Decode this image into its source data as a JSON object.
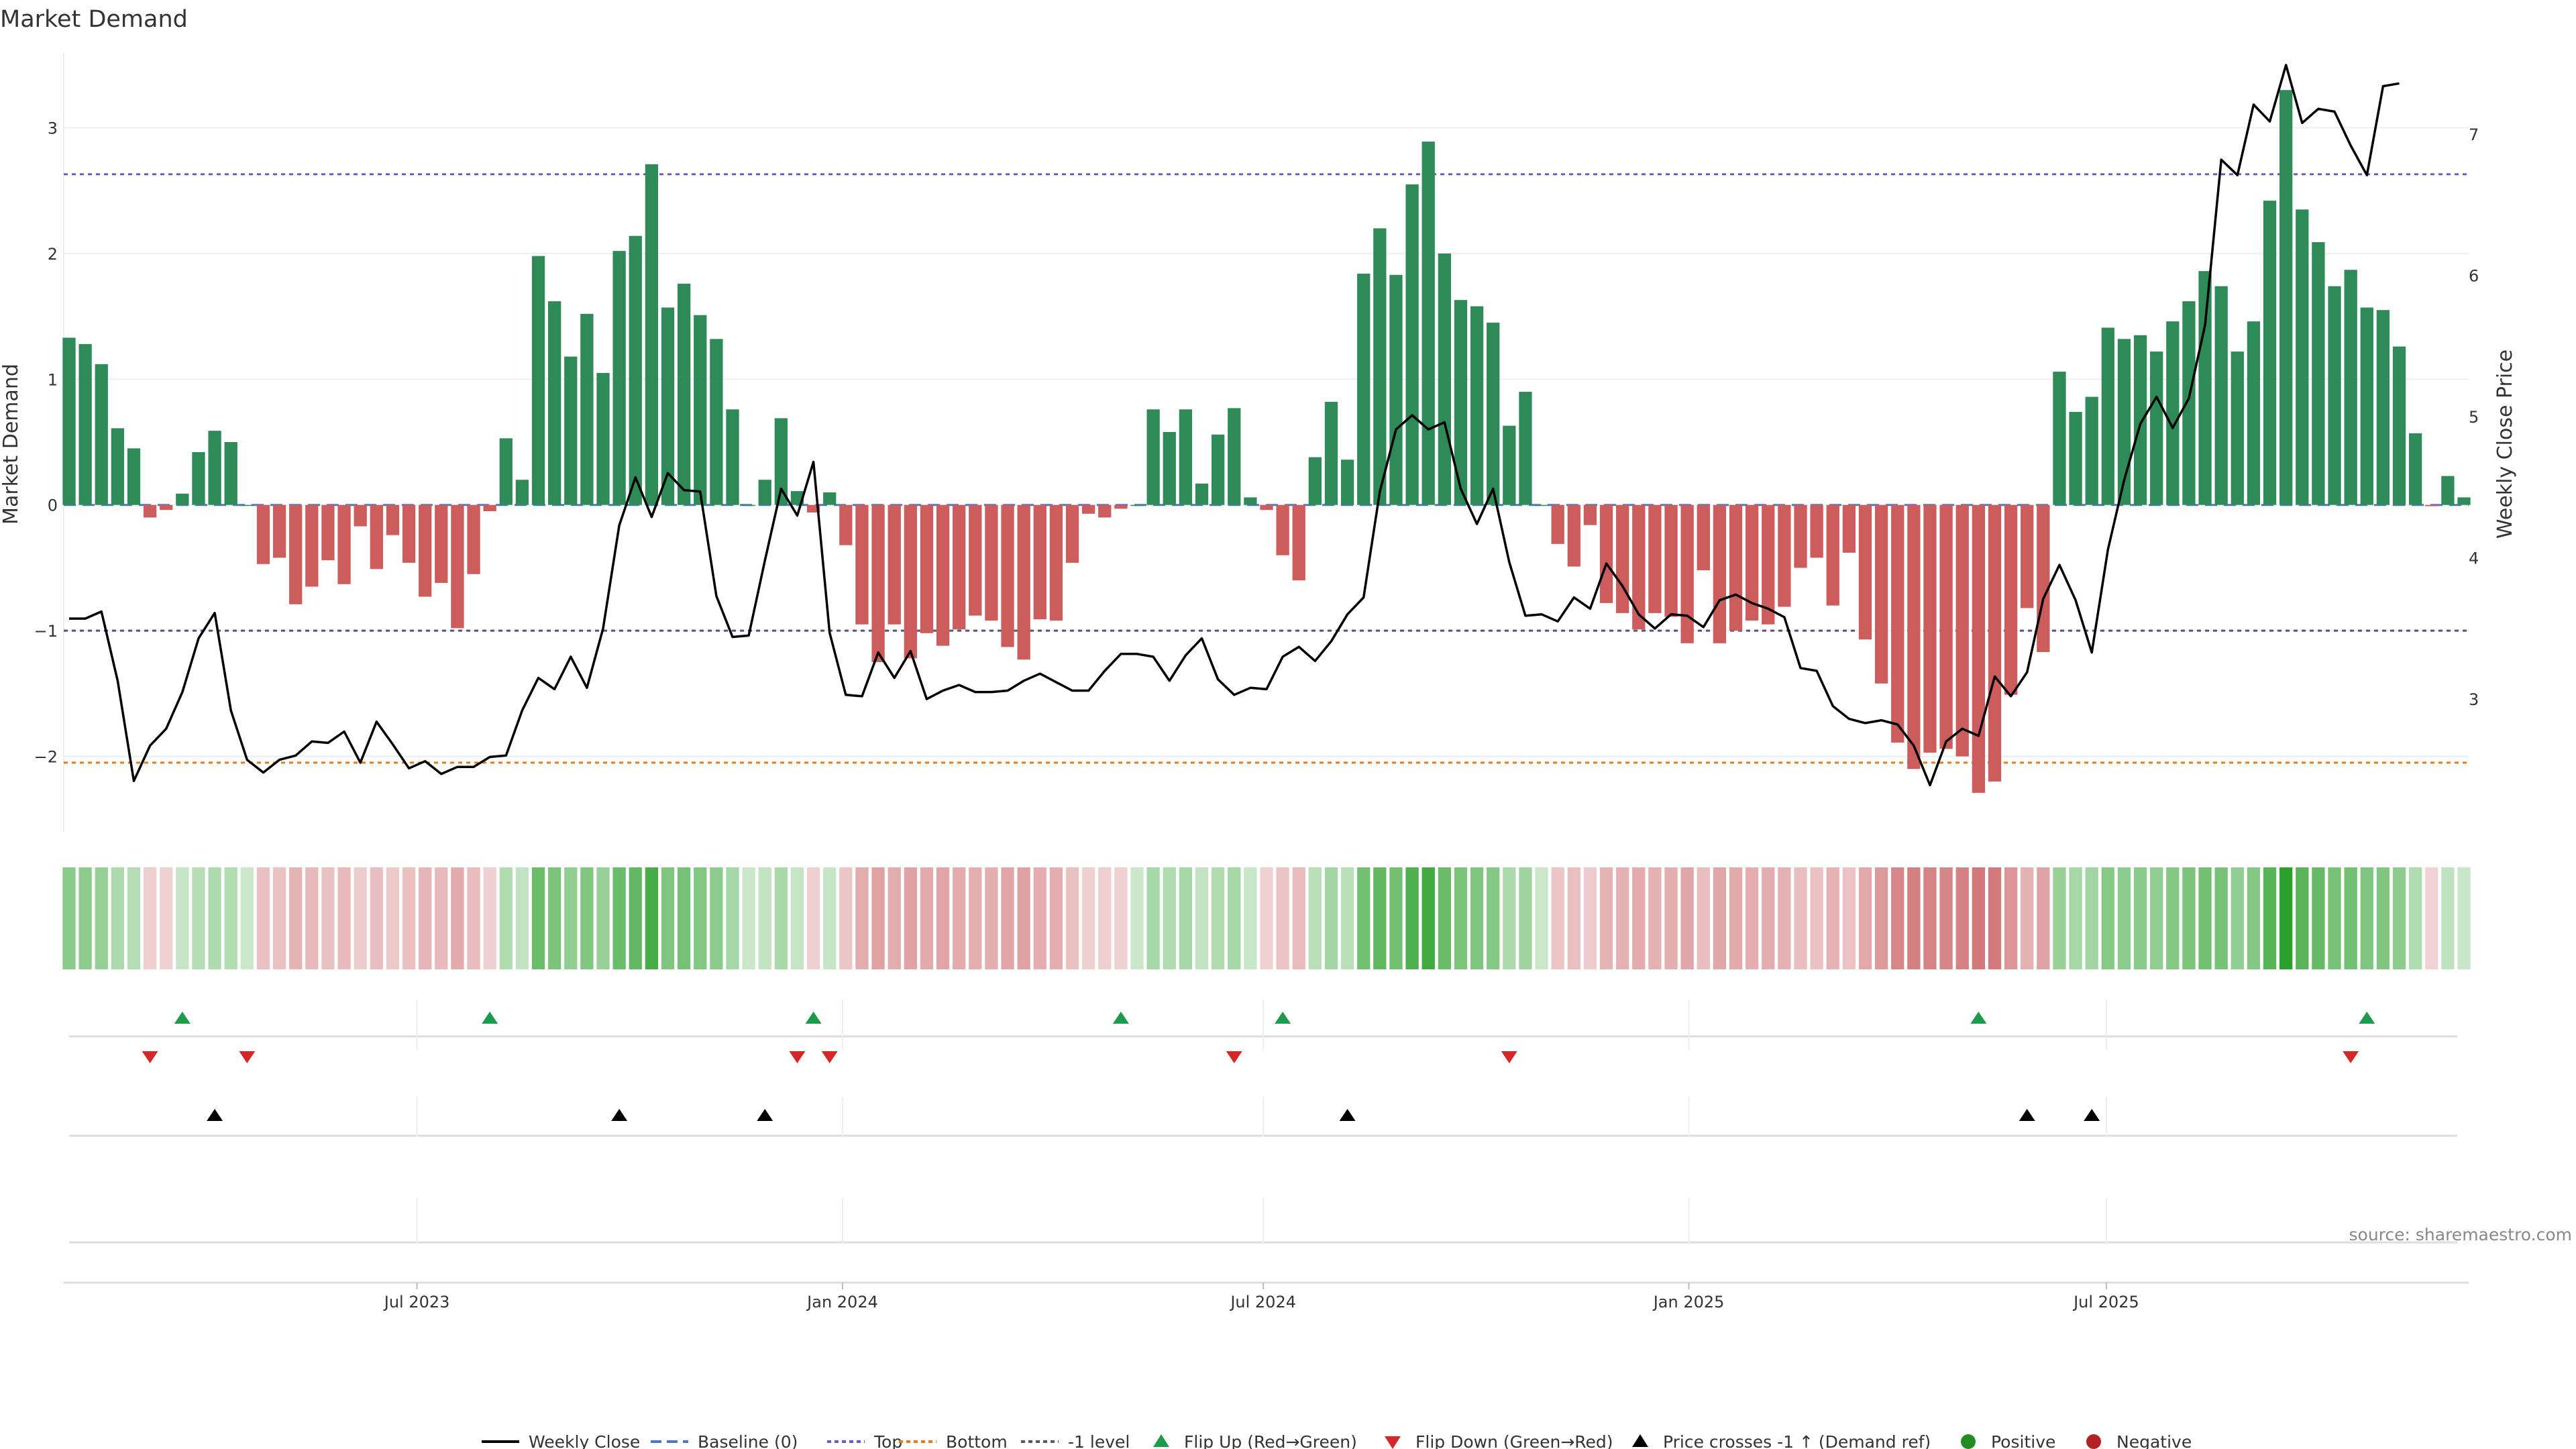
{
  "chart_data": {
    "type": "bar",
    "title": "Market Demand",
    "ylabel_left": "Market Demand",
    "ylabel_right": "Weekly Close Price",
    "left_axis": {
      "ylim": [
        -2.6,
        3.6
      ],
      "ticks": [
        3,
        2,
        1,
        0,
        -1,
        -2
      ],
      "tick_labels": [
        "3",
        "2",
        "1",
        "0",
        "−1",
        "−2"
      ]
    },
    "right_axis": {
      "ylim": [
        2.06,
        7.58
      ],
      "ticks": [
        7,
        6,
        5,
        4,
        3
      ],
      "tick_labels": [
        "7",
        "6",
        "5",
        "4",
        "3"
      ]
    },
    "x_axis": {
      "start": "2023-02-24",
      "weeks": 144,
      "ticks": [
        {
          "week": 21.5,
          "label": "Jul 2023"
        },
        {
          "week": 47.8,
          "label": "Jan 2024"
        },
        {
          "week": 73.8,
          "label": "Jul 2024"
        },
        {
          "week": 100.1,
          "label": "Jan 2025"
        },
        {
          "week": 125.9,
          "label": "Jul 2025"
        }
      ]
    },
    "reference_lines": [
      {
        "name": "Baseline (0)",
        "value": 0,
        "color": "#4c78c8",
        "dash": "dashed"
      },
      {
        "name": "Top",
        "value": 2.63,
        "color": "#6a5acd",
        "dash": "dotted"
      },
      {
        "name": "Bottom",
        "value": -2.05,
        "color": "#e07b1f",
        "dash": "dotted"
      },
      {
        "name": "-1 level",
        "value": -1.0,
        "color": "#555577",
        "dash": "dotted"
      }
    ],
    "demand": [
      1.33,
      1.28,
      1.12,
      0.61,
      0.45,
      -0.1,
      -0.04,
      0.09,
      0.42,
      0.59,
      0.5,
      0,
      -0.47,
      -0.42,
      -0.79,
      -0.65,
      -0.44,
      -0.63,
      -0.17,
      -0.51,
      -0.24,
      -0.46,
      -0.73,
      -0.62,
      -0.98,
      -0.55,
      -0.05,
      0.53,
      0.2,
      1.98,
      1.62,
      1.18,
      1.52,
      1.05,
      2.02,
      2.14,
      2.71,
      1.57,
      1.76,
      1.51,
      1.32,
      0.76,
      0,
      0.2,
      0.69,
      0.11,
      -0.06,
      0.1,
      -0.32,
      -0.95,
      -1.25,
      -0.95,
      -1.22,
      -1.02,
      -1.12,
      -0.99,
      -0.88,
      -0.92,
      -1.13,
      -1.23,
      -0.91,
      -0.92,
      -0.46,
      -0.07,
      -0.1,
      -0.03,
      0,
      0.76,
      0.58,
      0.76,
      0.17,
      0.56,
      0.77,
      0.06,
      -0.04,
      -0.4,
      -0.6,
      0.38,
      0.82,
      0.36,
      1.84,
      2.2,
      1.83,
      2.55,
      2.89,
      2.0,
      1.63,
      1.58,
      1.45,
      0.63,
      0.9,
      0,
      -0.31,
      -0.49,
      -0.16,
      -0.78,
      -0.86,
      -0.99,
      -0.86,
      -0.89,
      -1.1,
      -0.52,
      -1.1,
      -1.0,
      -0.92,
      -0.95,
      -0.81,
      -0.5,
      -0.42,
      -0.8,
      -0.38,
      -1.07,
      -1.42,
      -1.89,
      -2.1,
      -1.97,
      -1.94,
      -2.0,
      -2.29,
      -2.2,
      -1.51,
      -0.82,
      -1.17,
      1.06,
      0.74,
      0.86,
      1.41,
      1.32,
      1.35,
      1.22,
      1.46,
      1.62,
      1.86,
      1.74,
      1.22,
      1.46,
      2.42,
      3.3,
      2.35,
      2.09,
      1.74,
      1.87,
      1.57,
      1.55,
      1.26,
      0.57,
      -0.01,
      0.23,
      0.06
    ],
    "weekly_close": [
      3.57,
      3.57,
      3.62,
      3.13,
      2.42,
      2.67,
      2.79,
      3.05,
      3.43,
      3.61,
      2.92,
      2.57,
      2.48,
      2.57,
      2.6,
      2.7,
      2.69,
      2.77,
      2.55,
      2.84,
      2.68,
      2.51,
      2.56,
      2.47,
      2.52,
      2.52,
      2.59,
      2.6,
      2.92,
      3.15,
      3.07,
      3.3,
      3.08,
      3.5,
      4.23,
      4.57,
      4.29,
      4.6,
      4.48,
      4.47,
      3.73,
      3.44,
      3.45,
      3.98,
      4.49,
      4.3,
      4.68,
      3.47,
      3.03,
      3.02,
      3.33,
      3.15,
      3.34,
      3.0,
      3.06,
      3.1,
      3.05,
      3.05,
      3.06,
      3.13,
      3.18,
      3.12,
      3.06,
      3.06,
      3.2,
      3.32,
      3.32,
      3.3,
      3.13,
      3.31,
      3.43,
      3.14,
      3.03,
      3.08,
      3.07,
      3.3,
      3.37,
      3.27,
      3.41,
      3.6,
      3.72,
      4.47,
      4.91,
      5.01,
      4.91,
      4.96,
      4.49,
      4.24,
      4.49,
      3.97,
      3.59,
      3.6,
      3.55,
      3.72,
      3.64,
      3.96,
      3.8,
      3.6,
      3.5,
      3.6,
      3.59,
      3.51,
      3.7,
      3.74,
      3.68,
      3.64,
      3.58,
      3.22,
      3.2,
      2.95,
      2.86,
      2.83,
      2.85,
      2.82,
      2.67,
      2.39,
      2.7,
      2.79,
      2.74,
      3.16,
      3.02,
      3.19,
      3.71,
      3.95,
      3.7,
      3.33,
      4.06,
      4.55,
      4.95,
      5.14,
      4.92,
      5.13,
      5.65,
      6.82,
      6.71,
      7.21,
      7.09,
      7.49,
      7.08,
      7.18,
      7.16,
      6.92,
      6.71,
      7.34,
      7.36
    ],
    "flip_up": [
      7,
      26,
      46,
      65,
      75,
      118,
      142
    ],
    "flip_down": [
      5,
      11,
      45,
      47,
      72,
      89,
      141
    ],
    "price_crosses": [
      9,
      34,
      43,
      79,
      121,
      125
    ],
    "legend": [
      {
        "label": "Weekly Close",
        "kind": "line-solid",
        "color": "#000000"
      },
      {
        "label": "Baseline (0)",
        "kind": "line-dashed",
        "color": "#4c78c8"
      },
      {
        "label": "Top",
        "kind": "line-dotted",
        "color": "#6a5acd"
      },
      {
        "label": "Bottom",
        "kind": "line-dotted",
        "color": "#e07b1f"
      },
      {
        "label": "-1 level",
        "kind": "line-dotted",
        "color": "#555577"
      },
      {
        "label": "Flip Up (Red→Green)",
        "kind": "triangle-up",
        "color": "#1e9a4c"
      },
      {
        "label": "Flip Down (Green→Red)",
        "kind": "triangle-down",
        "color": "#d62728"
      },
      {
        "label": "Price crosses -1 ↑ (Demand ref)",
        "kind": "triangle-up",
        "color": "#000000"
      },
      {
        "label": "Positive",
        "kind": "circle",
        "color": "#228b22"
      },
      {
        "label": "Negative",
        "kind": "circle",
        "color": "#b22222"
      }
    ],
    "colors": {
      "positive": "#2e8b57",
      "negative": "#cd5c5c",
      "heat_positive": "#2ca02c",
      "heat_negative": "#c44e52"
    }
  },
  "source": "source: sharemaestro.com"
}
